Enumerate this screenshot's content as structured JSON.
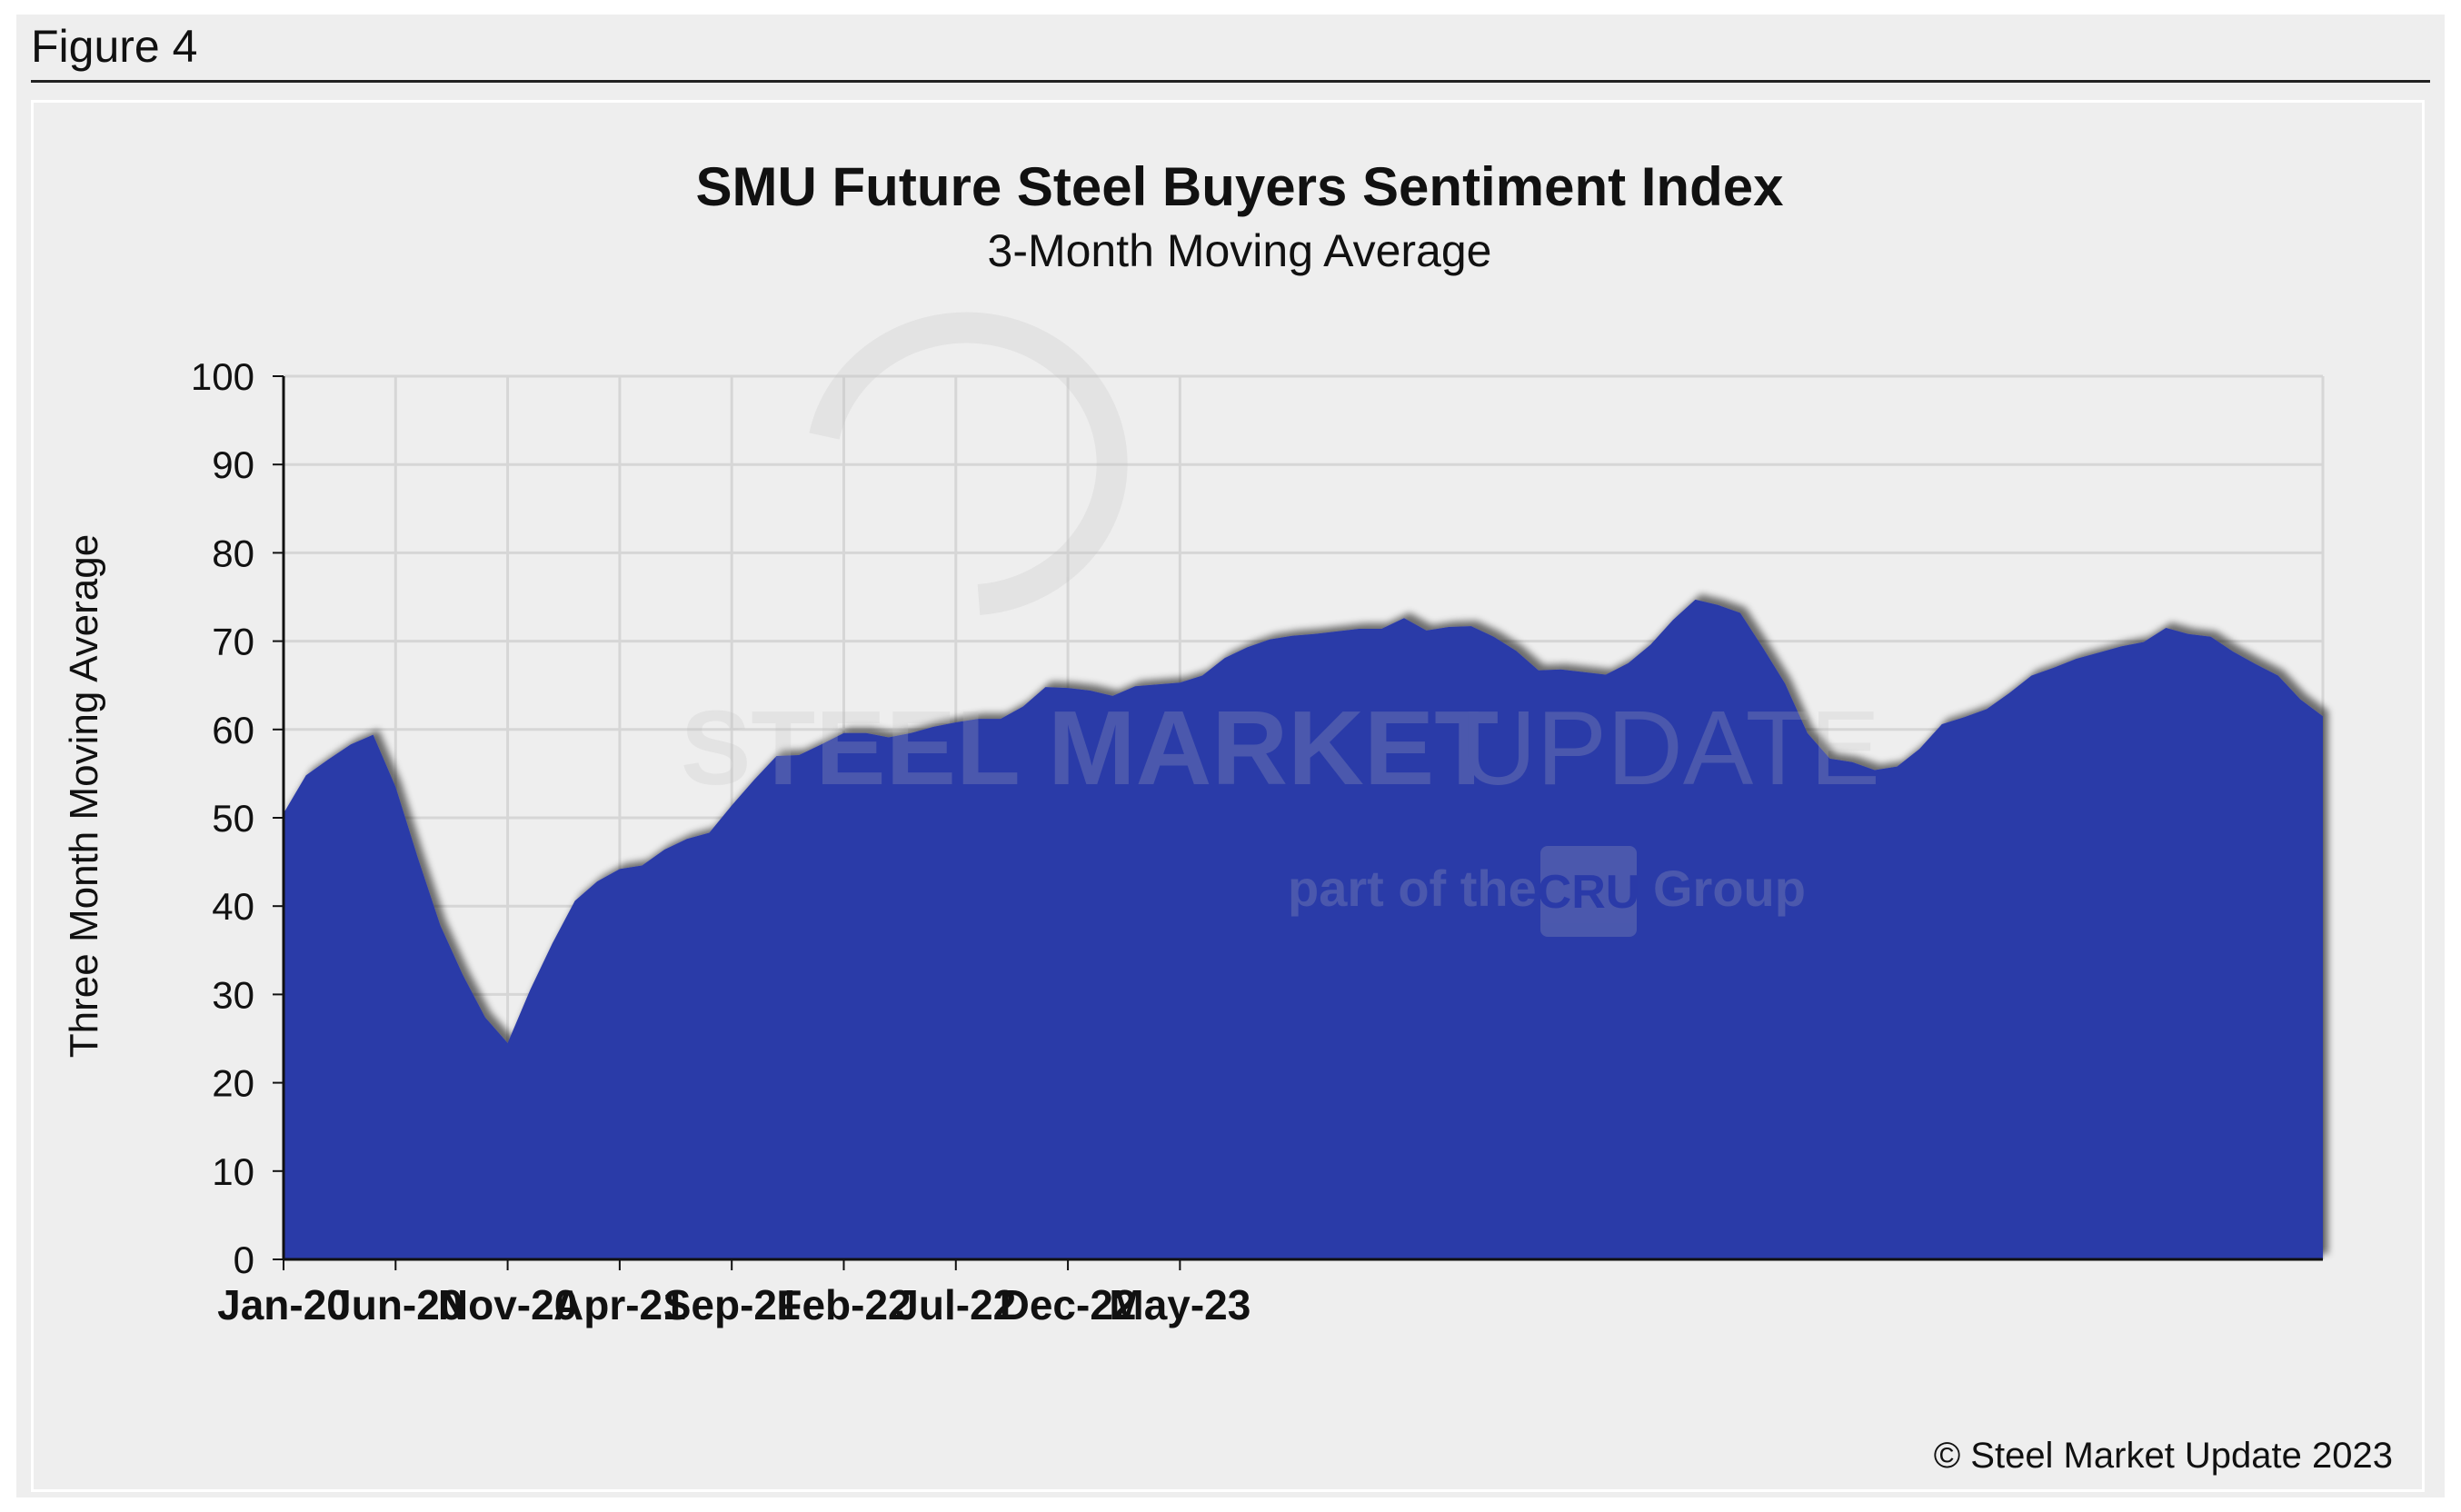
{
  "figure_label": "Figure 4",
  "copyright": "© Steel Market Update 2023",
  "watermark": {
    "brand_bold": "STEEL MARKET",
    "brand_light": "UPDATE",
    "sub_prefix": "part of the",
    "sub_logo": "CRU",
    "sub_suffix": "Group"
  },
  "colors": {
    "area_fill": "#2b3aa8",
    "gridline": "#d6d6d6",
    "background": "#eeeeee"
  },
  "chart_data": {
    "type": "area",
    "title": "SMU Future Steel Buyers Sentiment Index",
    "subtitle": "3-Month Moving Average",
    "xlabel": "",
    "ylabel": "Three Month Moving Average",
    "ylim": [
      0,
      100
    ],
    "yticks": [
      0,
      10,
      20,
      30,
      40,
      50,
      60,
      70,
      80,
      90,
      100
    ],
    "x_tick_labels": [
      "Jan-20",
      "Jun-20",
      "Nov-20",
      "Apr-21",
      "Sep-21",
      "Feb-22",
      "Jul-22",
      "Dec-22",
      "May-23"
    ],
    "x_tick_every": 5,
    "grid": true,
    "series": [
      {
        "name": "3-Month Moving Average",
        "values": [
          50.5,
          54.8,
          56.6,
          58.3,
          59.4,
          53.5,
          45.4,
          37.8,
          32.2,
          27.4,
          24.5,
          30.5,
          35.8,
          40.6,
          42.8,
          44.2,
          44.6,
          46.4,
          47.6,
          48.3,
          51.4,
          54.3,
          57.0,
          57.1,
          58.3,
          59.6,
          59.6,
          59.1,
          59.6,
          60.3,
          60.8,
          61.2,
          61.2,
          62.6,
          64.8,
          64.7,
          64.4,
          63.8,
          64.9,
          65.1,
          65.3,
          66.1,
          68.1,
          69.3,
          70.2,
          70.6,
          70.8,
          71.1,
          71.4,
          71.4,
          72.6,
          71.2,
          71.6,
          71.7,
          70.5,
          68.9,
          66.7,
          66.8,
          66.5,
          66.2,
          67.5,
          69.6,
          72.4,
          74.7,
          74.1,
          73.2,
          69.3,
          65.2,
          59.6,
          56.7,
          56.3,
          55.4,
          55.8,
          57.8,
          60.6,
          61.4,
          62.3,
          64.1,
          66.1,
          67.0,
          68.0,
          68.7,
          69.4,
          69.9,
          71.5,
          70.8,
          70.5,
          68.8,
          67.4,
          66.1,
          63.4,
          61.5
        ]
      }
    ]
  }
}
